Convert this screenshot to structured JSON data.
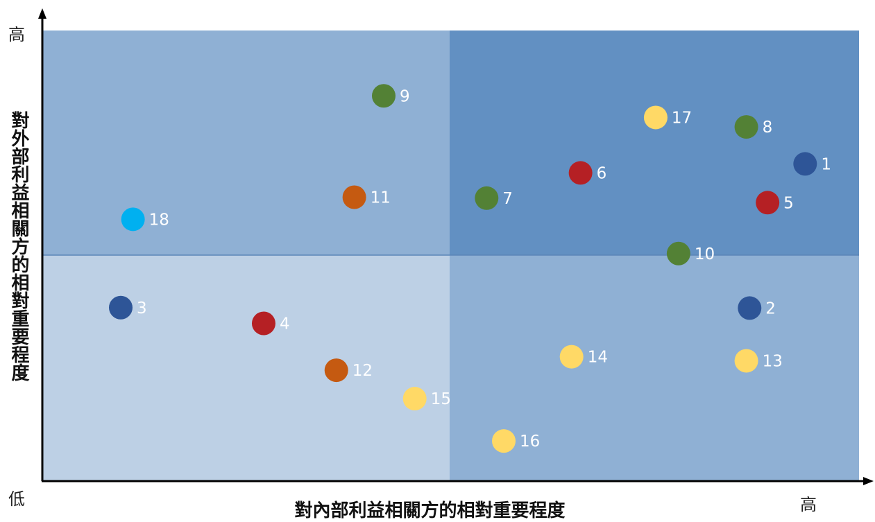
{
  "chart_data": {
    "type": "scatter",
    "xlabel": "對內部利益相關方的相對重要程度",
    "ylabel": "對外部利益相關方的相對重要程度",
    "axis_low_label": "低",
    "x_high_label": "高",
    "y_high_label": "高",
    "xlim": [
      0,
      100
    ],
    "ylim": [
      0,
      100
    ],
    "quadrant_divider": {
      "x": 50,
      "y": 50
    },
    "quadrant_colors": {
      "low_low": "#bdd0e5",
      "low_high": "#8fb0d4",
      "high_low": "#8fb0d4",
      "high_high": "#6290c2"
    },
    "points": [
      {
        "label": "1",
        "x": 93.4,
        "y": 70.4,
        "color": "#2e5597"
      },
      {
        "label": "2",
        "x": 86.6,
        "y": 38.4,
        "color": "#2e5597"
      },
      {
        "label": "3",
        "x": 9.6,
        "y": 38.5,
        "color": "#2e5597"
      },
      {
        "label": "4",
        "x": 27.1,
        "y": 35.0,
        "color": "#b52024"
      },
      {
        "label": "5",
        "x": 88.8,
        "y": 61.8,
        "color": "#b52024"
      },
      {
        "label": "6",
        "x": 65.9,
        "y": 68.4,
        "color": "#b52024"
      },
      {
        "label": "7",
        "x": 54.4,
        "y": 62.8,
        "color": "#538135"
      },
      {
        "label": "8",
        "x": 86.2,
        "y": 78.6,
        "color": "#538135"
      },
      {
        "label": "9",
        "x": 41.8,
        "y": 85.5,
        "color": "#538135"
      },
      {
        "label": "10",
        "x": 77.9,
        "y": 50.5,
        "color": "#538135"
      },
      {
        "label": "11",
        "x": 38.2,
        "y": 63.0,
        "color": "#c55a11"
      },
      {
        "label": "12",
        "x": 36.0,
        "y": 24.6,
        "color": "#c55a11"
      },
      {
        "label": "13",
        "x": 86.2,
        "y": 26.7,
        "color": "#ffd966"
      },
      {
        "label": "14",
        "x": 64.8,
        "y": 27.6,
        "color": "#ffd966"
      },
      {
        "label": "15",
        "x": 45.6,
        "y": 18.3,
        "color": "#ffd966"
      },
      {
        "label": "16",
        "x": 56.5,
        "y": 8.9,
        "color": "#ffd966"
      },
      {
        "label": "17",
        "x": 75.1,
        "y": 80.7,
        "color": "#ffd966"
      },
      {
        "label": "18",
        "x": 11.1,
        "y": 58.1,
        "color": "#00b0f0"
      }
    ]
  }
}
